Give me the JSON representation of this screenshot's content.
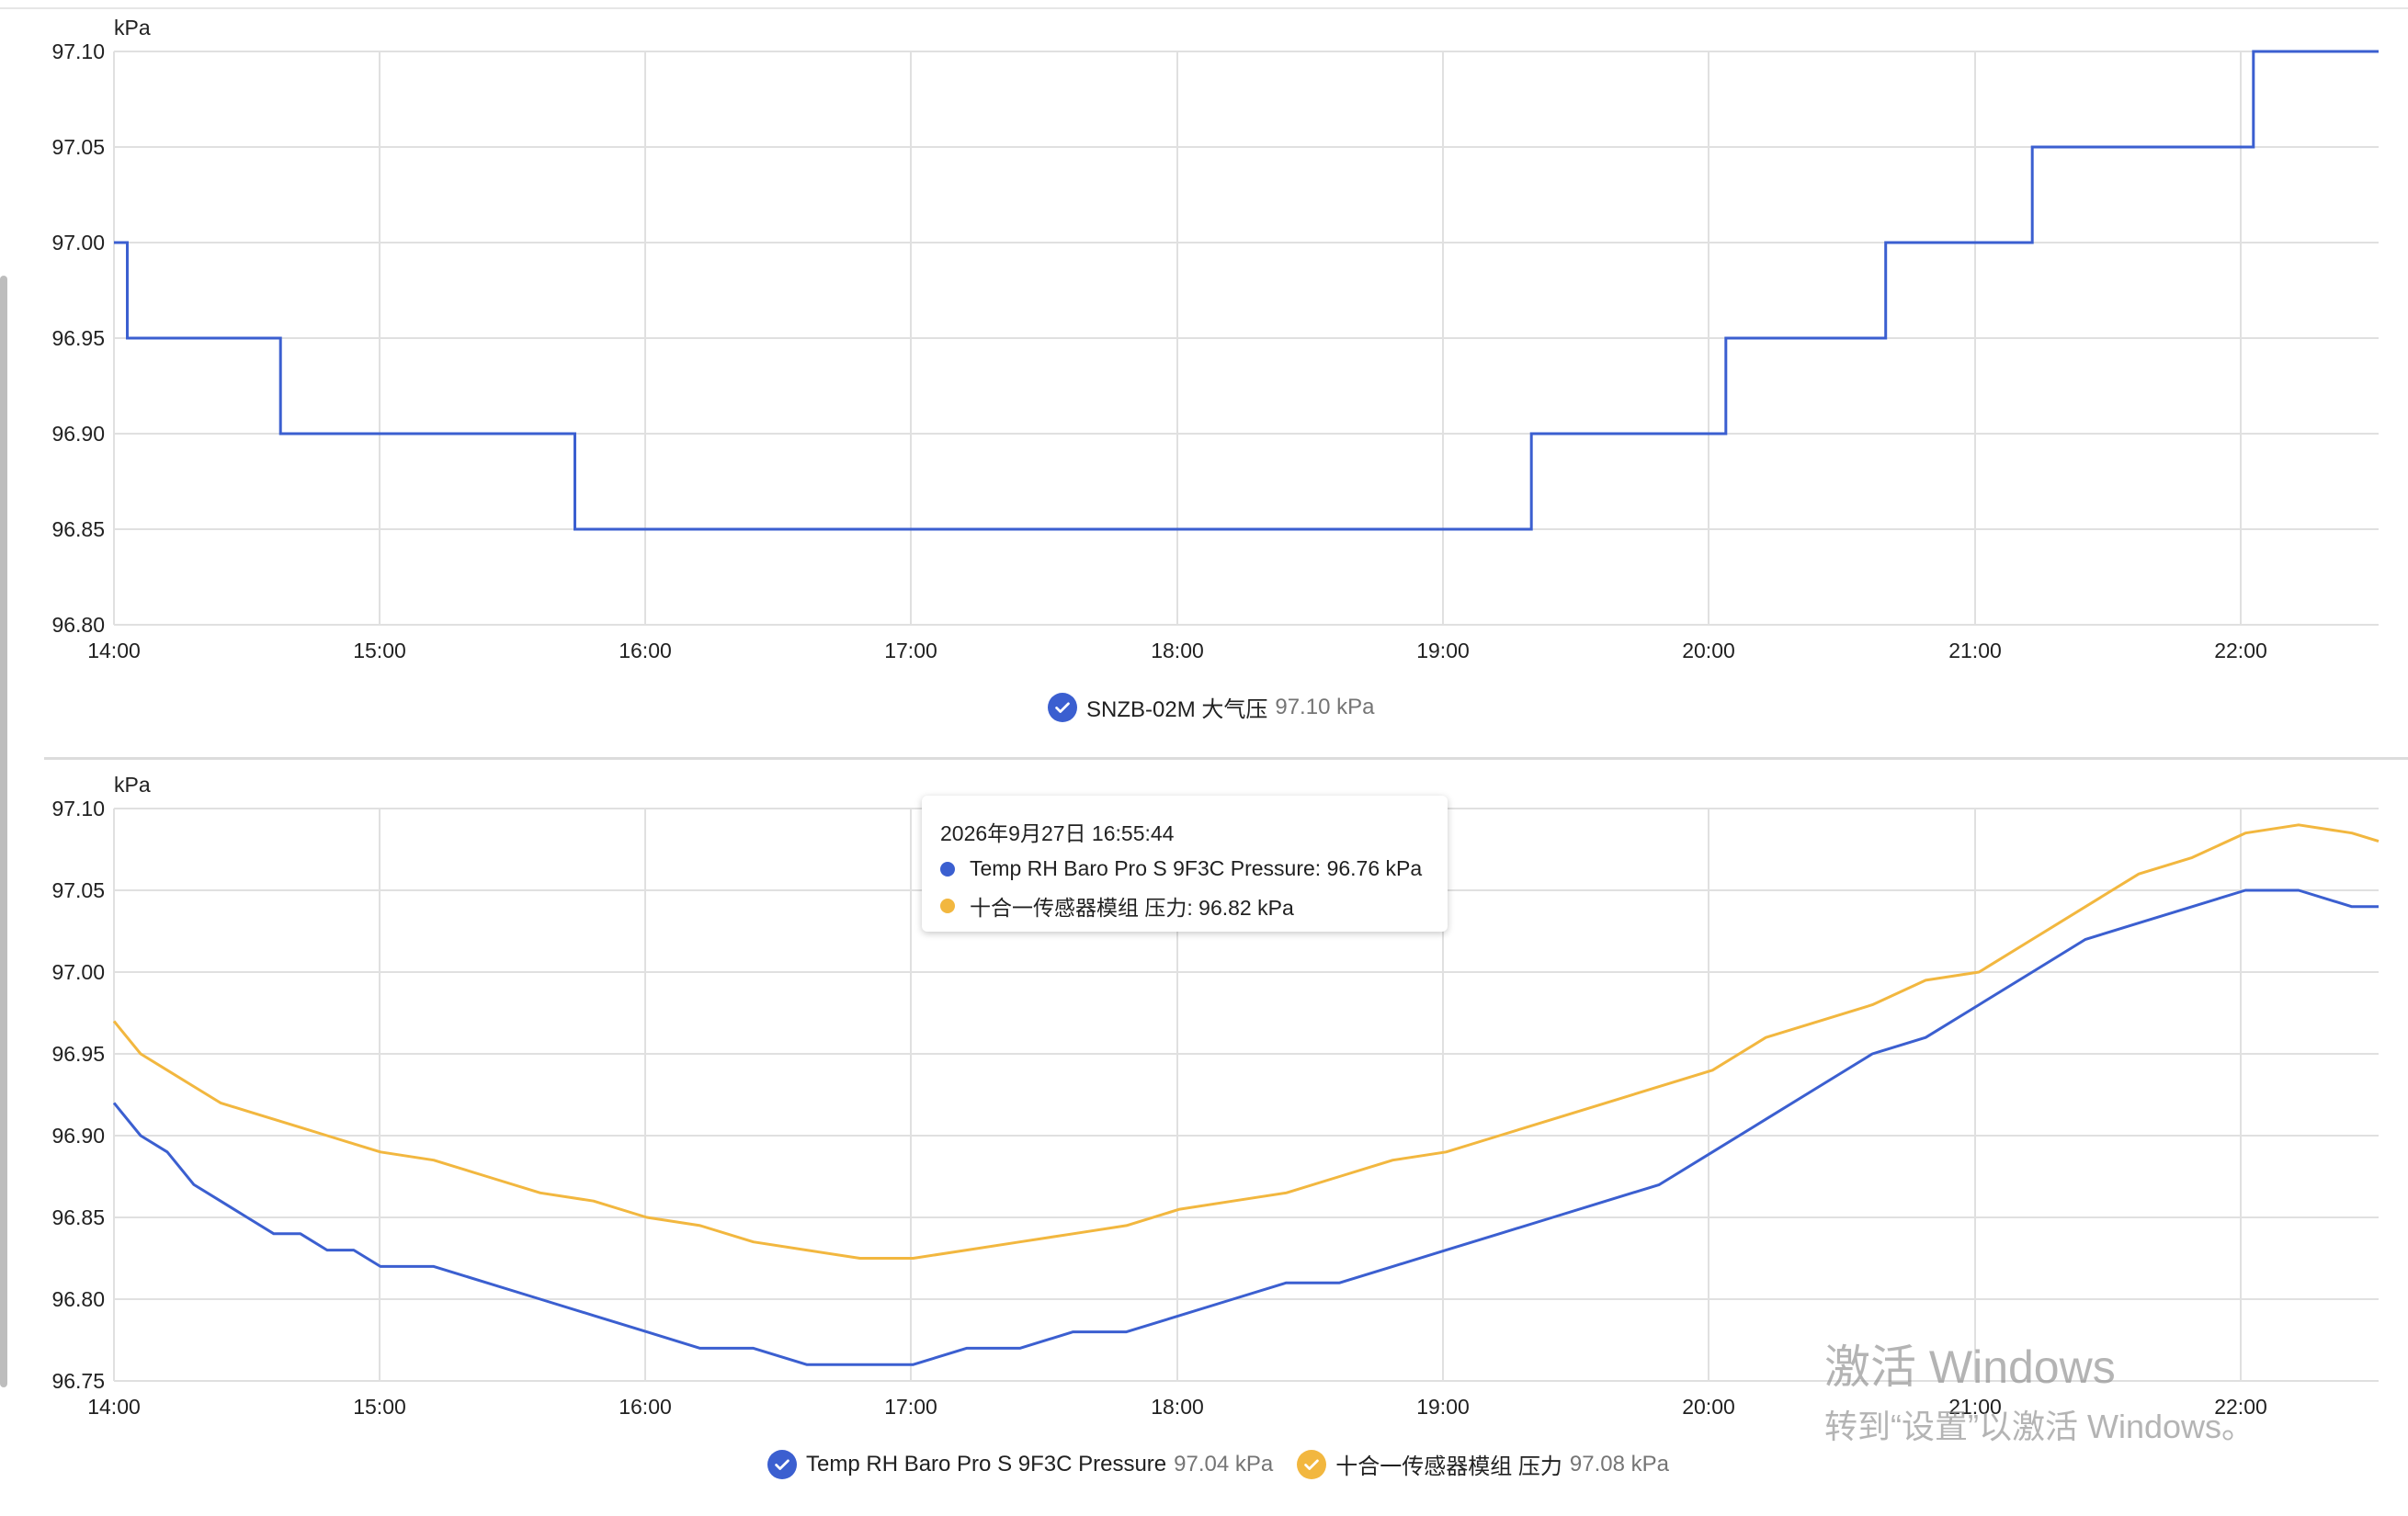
{
  "colors": {
    "blue": "#3b5fd0",
    "yellow": "#f2b73f"
  },
  "chart_data": [
    {
      "type": "line",
      "ylabel": "kPa",
      "ylim": [
        96.8,
        97.1
      ],
      "y_ticks": [
        "97.10",
        "97.05",
        "97.00",
        "96.95",
        "96.90",
        "96.85",
        "96.80"
      ],
      "x_ticks": [
        "14:00",
        "15:00",
        "16:00",
        "17:00",
        "18:00",
        "19:00",
        "20:00",
        "21:00",
        "22:00"
      ],
      "xlim": [
        0,
        8.5
      ],
      "grid": true,
      "legend_position": "bottom",
      "series": [
        {
          "name": "SNZB-02M 大气压",
          "color": "#3b5fd0",
          "current_value": "97.10 kPa",
          "step": true,
          "x": [
            0,
            0.05,
            0.625,
            1.73,
            5.32,
            6.05,
            6.65,
            7.2,
            8.03,
            8.5
          ],
          "y": [
            97.0,
            96.95,
            96.9,
            96.85,
            96.9,
            96.95,
            97.0,
            97.05,
            97.1,
            97.1
          ]
        }
      ]
    },
    {
      "type": "line",
      "ylabel": "kPa",
      "ylim": [
        96.75,
        97.1
      ],
      "y_ticks": [
        "97.10",
        "97.05",
        "97.00",
        "96.95",
        "96.90",
        "96.85",
        "96.80",
        "96.75"
      ],
      "x_ticks": [
        "14:00",
        "15:00",
        "16:00",
        "17:00",
        "18:00",
        "19:00",
        "20:00",
        "21:00",
        "22:00"
      ],
      "xlim": [
        0,
        8.5
      ],
      "grid": true,
      "legend_position": "bottom",
      "series": [
        {
          "name": "Temp RH Baro Pro S 9F3C Pressure",
          "color": "#3b5fd0",
          "current_value": "97.04 kPa",
          "x": [
            0,
            0.1,
            0.2,
            0.3,
            0.4,
            0.5,
            0.6,
            0.7,
            0.8,
            0.9,
            1.0,
            1.2,
            1.4,
            1.6,
            1.8,
            2.0,
            2.2,
            2.4,
            2.6,
            2.8,
            3.0,
            3.2,
            3.4,
            3.6,
            3.8,
            4.0,
            4.2,
            4.4,
            4.6,
            4.8,
            5.0,
            5.2,
            5.4,
            5.6,
            5.8,
            6.0,
            6.2,
            6.4,
            6.6,
            6.8,
            7.0,
            7.2,
            7.4,
            7.6,
            7.8,
            8.0,
            8.2,
            8.4,
            8.5
          ],
          "y": [
            96.92,
            96.9,
            96.89,
            96.87,
            96.86,
            96.85,
            96.84,
            96.84,
            96.83,
            96.83,
            96.82,
            96.82,
            96.81,
            96.8,
            96.79,
            96.78,
            96.77,
            96.77,
            96.76,
            96.76,
            96.76,
            96.77,
            96.77,
            96.78,
            96.78,
            96.79,
            96.8,
            96.81,
            96.81,
            96.82,
            96.83,
            96.84,
            96.85,
            96.86,
            96.87,
            96.89,
            96.91,
            96.93,
            96.95,
            96.96,
            96.98,
            97.0,
            97.02,
            97.03,
            97.04,
            97.05,
            97.05,
            97.04,
            97.04
          ]
        },
        {
          "name": "十合一传感器模组 压力",
          "color": "#f2b73f",
          "current_value": "97.08 kPa",
          "x": [
            0,
            0.1,
            0.2,
            0.3,
            0.4,
            0.5,
            0.6,
            0.7,
            0.8,
            0.9,
            1.0,
            1.2,
            1.4,
            1.6,
            1.8,
            2.0,
            2.2,
            2.4,
            2.6,
            2.8,
            3.0,
            3.2,
            3.4,
            3.6,
            3.8,
            4.0,
            4.2,
            4.4,
            4.6,
            4.8,
            5.0,
            5.2,
            5.4,
            5.6,
            5.8,
            6.0,
            6.2,
            6.4,
            6.6,
            6.8,
            7.0,
            7.2,
            7.4,
            7.6,
            7.8,
            8.0,
            8.2,
            8.4,
            8.5
          ],
          "y": [
            96.97,
            96.95,
            96.94,
            96.93,
            96.92,
            96.915,
            96.91,
            96.905,
            96.9,
            96.895,
            96.89,
            96.885,
            96.875,
            96.865,
            96.86,
            96.85,
            96.845,
            96.835,
            96.83,
            96.825,
            96.825,
            96.83,
            96.835,
            96.84,
            96.845,
            96.855,
            96.86,
            96.865,
            96.875,
            96.885,
            96.89,
            96.9,
            96.91,
            96.92,
            96.93,
            96.94,
            96.96,
            96.97,
            96.98,
            96.995,
            97.0,
            97.02,
            97.04,
            97.06,
            97.07,
            97.085,
            97.09,
            97.085,
            97.08
          ]
        }
      ]
    }
  ],
  "legend_top": {
    "label": "SNZB-02M 大气压",
    "value": "97.10 kPa"
  },
  "legend_bottom": {
    "item1_label": "Temp RH Baro Pro S 9F3C Pressure",
    "item1_value": "97.04 kPa",
    "item2_label": "十合一传感器模组 压力",
    "item2_value": "97.08 kPa"
  },
  "tooltip": {
    "title": "2026年9月27日 16:55:44",
    "row1": "Temp RH Baro Pro S 9F3C Pressure: 96.76 kPa",
    "row2": "十合一传感器模组 压力: 96.82 kPa"
  },
  "watermark": {
    "line1": "激活 Windows",
    "line2": "转到“设置”以激活 Windows。"
  }
}
